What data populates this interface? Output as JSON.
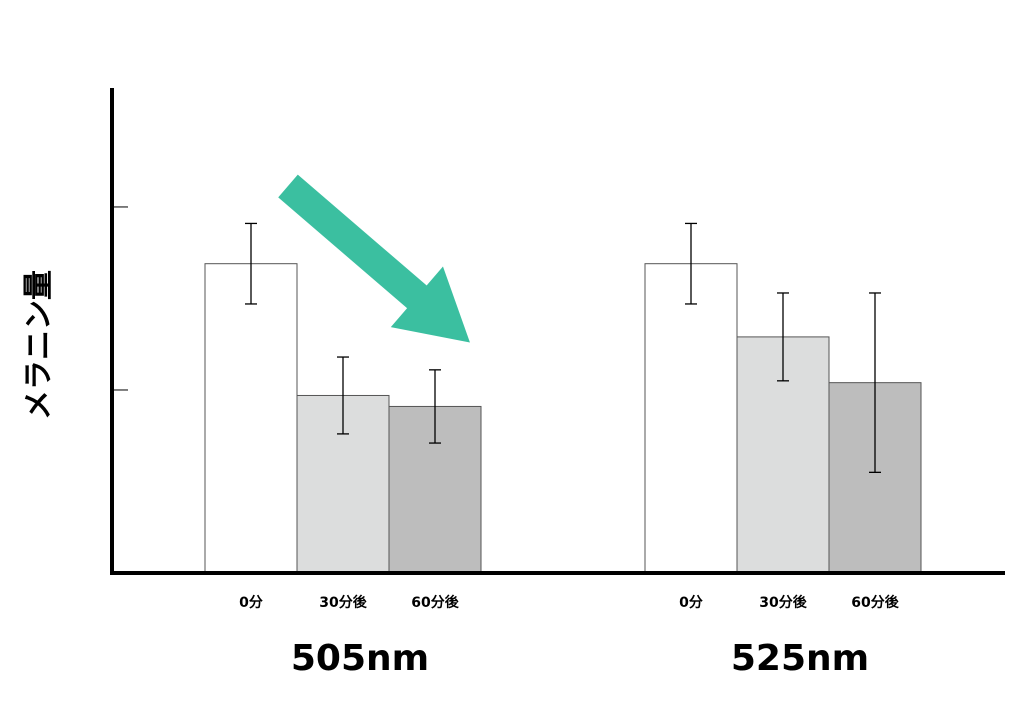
{
  "chart_data": {
    "type": "bar",
    "y_label": "メラニン量",
    "categories": [
      "505nm",
      "525nm"
    ],
    "series": [
      {
        "name": "0分",
        "color": "#ffffff",
        "values": [
          1.69,
          1.69
        ],
        "errors": [
          0.22,
          0.22
        ]
      },
      {
        "name": "30分後",
        "color": "#dcdddd",
        "values": [
          0.97,
          1.29
        ],
        "errors": [
          0.21,
          0.24
        ]
      },
      {
        "name": "60分後",
        "color": "#bdbdbd",
        "values": [
          0.91,
          1.04
        ],
        "errors": [
          0.2,
          0.49
        ]
      }
    ],
    "ylim": [
      0,
      2.65
    ],
    "yticks": [
      1,
      2
    ]
  }
}
